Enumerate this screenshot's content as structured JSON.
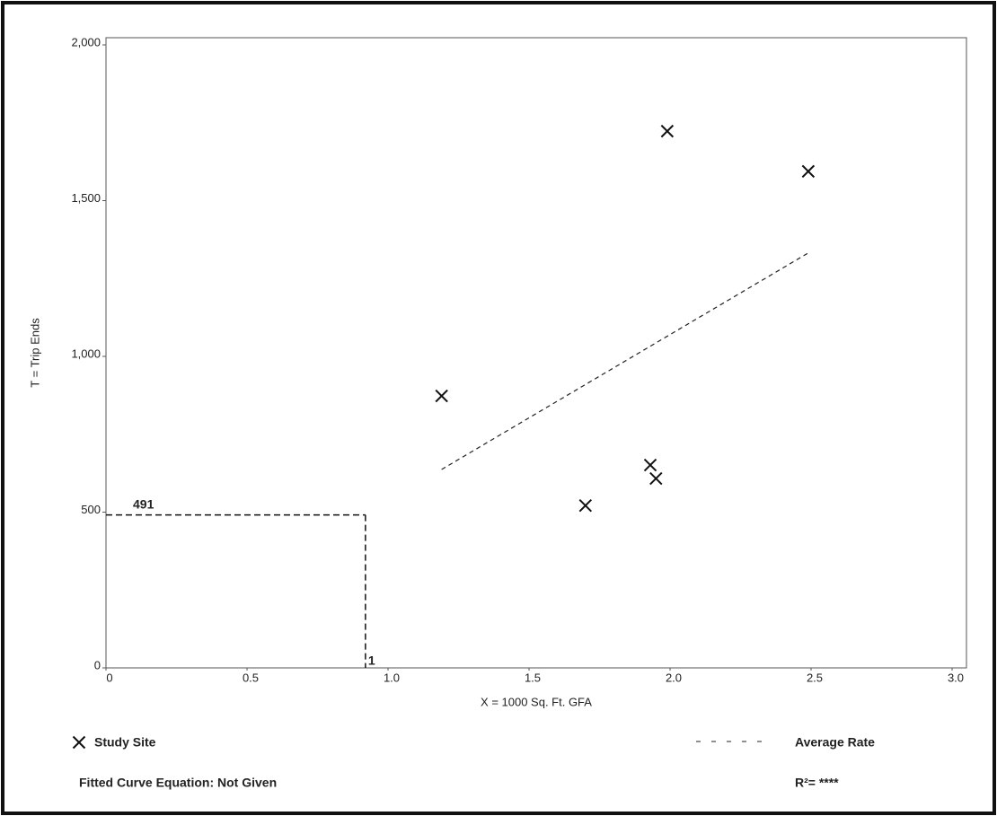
{
  "chart_data": {
    "type": "scatter",
    "xlabel": "X = 1000 Sq. Ft. GFA",
    "ylabel": "T = Trip Ends",
    "xlim": [
      0,
      3.0
    ],
    "ylim": [
      0,
      2000
    ],
    "xticks": [
      0,
      0.5,
      {
        "value": 1,
        "label": "1.0"
      },
      1.5,
      {
        "value": 2,
        "label": "2.0"
      },
      2.5,
      {
        "value": 3,
        "label": "3.0"
      }
    ],
    "yticks": [
      0,
      500,
      {
        "value": 1000,
        "label": "1,000"
      },
      {
        "value": 1500,
        "label": "1,500"
      },
      {
        "value": 2000,
        "label": "2,000"
      }
    ],
    "series": [
      {
        "name": "Study Site",
        "color": "#111111",
        "marker": "x",
        "x": [
          1.19,
          1.7,
          1.93,
          1.95,
          1.99,
          2.49
        ],
        "y": [
          873,
          521,
          651,
          608,
          1723,
          1594
        ]
      },
      {
        "name": "Average Rate",
        "color": "#222222",
        "marker": "dashed-line",
        "x": [
          1.19,
          2.49
        ],
        "y": [
          637,
          1332
        ]
      }
    ],
    "input": {
      "x": 0.92,
      "x_label": "1",
      "y": 491
    },
    "fitted_curve": "Fitted Curve Equation: Not Given",
    "r_squared": "R²= ****"
  }
}
